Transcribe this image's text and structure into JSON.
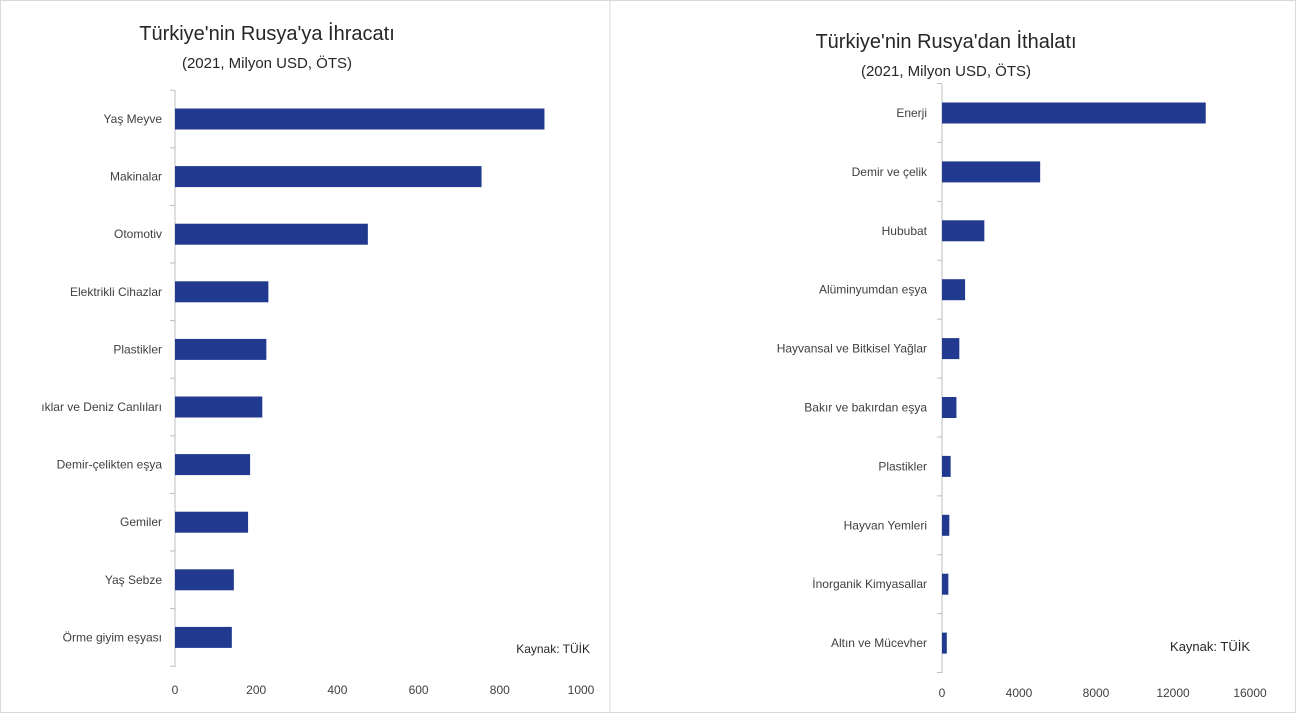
{
  "chart_data": [
    {
      "type": "bar",
      "orientation": "horizontal",
      "title": "Türkiye'nin  Rusya'ya İhracatı",
      "subtitle": "(2021, Milyon USD, ÖTS)",
      "categories": [
        "Yaş Meyve",
        "Makinalar",
        "Otomotiv",
        "Elektrikli Cihazlar",
        "Plastikler",
        "ıklar ve Deniz Canlıları",
        "Demir-çelikten eşya",
        "Gemiler",
        "Yaş Sebze",
        "Örme giyim eşyası"
      ],
      "values": [
        910,
        755,
        475,
        230,
        225,
        215,
        185,
        180,
        145,
        140
      ],
      "xticks": [
        "0",
        "200",
        "400",
        "600",
        "800",
        "1000"
      ],
      "xlim": [
        0,
        1000
      ],
      "source": "Kaynak: TÜİK",
      "grid": false,
      "color": "#213a8f"
    },
    {
      "type": "bar",
      "orientation": "horizontal",
      "title": "Türkiye'nin  Rusya'dan İthalatı",
      "subtitle": "(2021, Milyon USD, ÖTS)",
      "categories": [
        "Enerji",
        "Demir ve çelik",
        "Hububat",
        "Alüminyumdan eşya",
        "Hayvansal ve Bitkisel Yağlar",
        "Bakır ve bakırdan eşya",
        "Plastikler",
        "Hayvan Yemleri",
        "İnorganik Kimyasallar",
        "Altın ve Mücevher"
      ],
      "values": [
        13700,
        5100,
        2200,
        1200,
        900,
        750,
        450,
        380,
        330,
        250
      ],
      "xticks": [
        "0",
        "4000",
        "8000",
        "12000",
        "16000"
      ],
      "xlim": [
        0,
        16000
      ],
      "source": "Kaynak: TÜİK",
      "grid": false,
      "color": "#213a8f"
    }
  ]
}
